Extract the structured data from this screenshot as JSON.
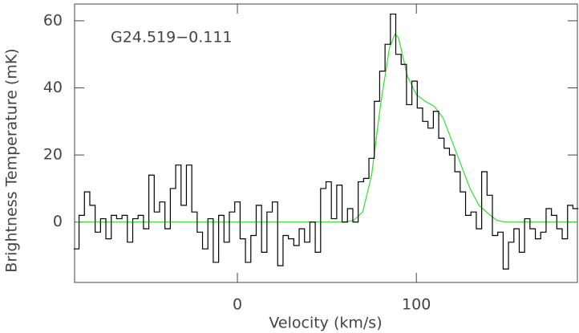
{
  "chart_data": {
    "type": "step",
    "xlabel": "Velocity (km/s)",
    "ylabel": "Brightness Temperature (mK)",
    "annotation": "G24.519−0.111",
    "xlim": [
      -91,
      190
    ],
    "ylim": [
      -18,
      65
    ],
    "xticks": [
      0,
      100
    ],
    "yticks": [
      0,
      20,
      40,
      60
    ],
    "x": [
      -90,
      -87,
      -84,
      -81,
      -78,
      -75,
      -72,
      -69,
      -66,
      -63,
      -60,
      -57,
      -54,
      -51,
      -48,
      -45,
      -42,
      -39,
      -36,
      -33,
      -30,
      -27,
      -24,
      -21,
      -18,
      -15,
      -12,
      -9,
      -6,
      -3,
      0,
      3,
      6,
      9,
      12,
      15,
      18,
      21,
      24,
      27,
      30,
      33,
      36,
      39,
      42,
      45,
      48,
      51,
      54,
      57,
      60,
      63,
      66,
      69,
      72,
      75,
      78,
      81,
      84,
      87,
      90,
      93,
      96,
      99,
      102,
      105,
      108,
      111,
      114,
      117,
      120,
      123,
      126,
      129,
      132,
      135,
      138,
      141,
      144,
      147,
      150,
      153,
      156,
      159,
      162,
      165,
      168,
      171,
      174,
      177,
      180,
      183,
      186,
      189
    ],
    "series": [
      {
        "color": "#000000",
        "values": [
          -8,
          2,
          9,
          5,
          -3,
          1,
          -5,
          2,
          1,
          2,
          -6,
          1,
          2,
          -2,
          14,
          3,
          6,
          -2,
          10,
          17,
          5,
          17,
          3,
          -3,
          -8,
          1,
          -12,
          2,
          -6,
          3,
          6,
          -5,
          -12,
          -4,
          5,
          -9,
          3,
          6,
          -13,
          -4,
          -5,
          -7,
          -2,
          -6,
          0,
          -9,
          10,
          12,
          1,
          11,
          0,
          4,
          0,
          12,
          13,
          19,
          36,
          45,
          53,
          62,
          50,
          47,
          35,
          42,
          34,
          30,
          28,
          33,
          25,
          22,
          20,
          15,
          9,
          2,
          3,
          -2,
          15,
          8,
          -4,
          -3,
          -14,
          -6,
          -2,
          -9,
          1,
          -2,
          -5,
          -3,
          4,
          2,
          -2,
          -5,
          5,
          4
        ]
      }
    ],
    "fit": {
      "color": "#33dd33",
      "x": [
        -90,
        60,
        65,
        70,
        75,
        80,
        85,
        88,
        90,
        95,
        100,
        105,
        110,
        115,
        120,
        125,
        130,
        135,
        140,
        145,
        150,
        190
      ],
      "values": [
        0,
        0,
        0.5,
        3,
        14,
        35,
        52,
        56,
        55,
        43.5,
        38,
        36,
        34.5,
        31,
        24,
        17,
        10,
        5,
        2.6,
        0.5,
        0,
        0
      ]
    }
  }
}
